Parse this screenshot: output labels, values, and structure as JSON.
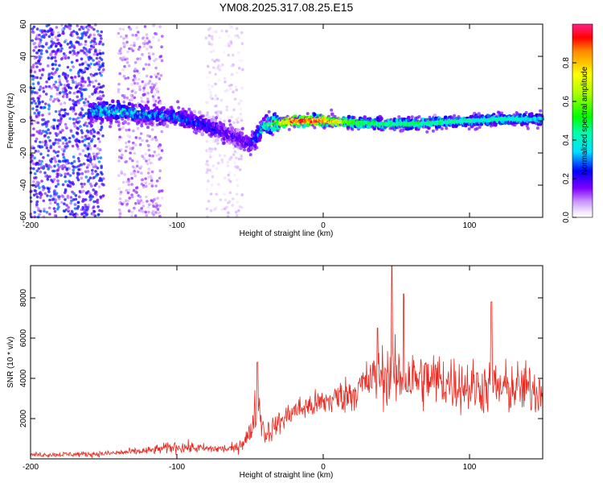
{
  "title": "YM08.2025.317.08.25.E15",
  "colors": {
    "snr_line": "#e8281e",
    "axis": "#000000",
    "background": "#ffffff"
  },
  "chart_data": [
    {
      "type": "heatmap",
      "name": "spectrogram",
      "xlabel": "Height of straight line (km)",
      "ylabel": "Frequency (Hz)",
      "xlim": [
        -200,
        150
      ],
      "ylim": [
        -60,
        60
      ],
      "xticks": [
        -200,
        -100,
        0,
        100
      ],
      "yticks": [
        -60,
        -40,
        -20,
        0,
        20,
        40,
        60
      ],
      "colorbar": {
        "label": "Normalized spectral amplitude",
        "range": [
          0,
          1
        ],
        "ticks": [
          0.0,
          0.2,
          0.4,
          0.6,
          0.8
        ],
        "colormap": "hsv-rainbow (white-violet-blue-cyan-green-yellow-red)"
      },
      "ridge": {
        "description": "main spectral energy band",
        "x": [
          -160,
          -140,
          -120,
          -100,
          -80,
          -60,
          -50,
          -40,
          -20,
          0,
          20,
          40,
          60,
          80,
          100,
          120,
          150
        ],
        "frequency": [
          6,
          6,
          4,
          2,
          -3,
          -10,
          -15,
          -3,
          0,
          0,
          -1,
          -2,
          -2,
          -1,
          0,
          1,
          1
        ],
        "amplitude": [
          0.35,
          0.4,
          0.35,
          0.3,
          0.25,
          0.2,
          0.2,
          0.45,
          0.95,
          0.95,
          0.6,
          0.5,
          0.5,
          0.5,
          0.45,
          0.45,
          0.4
        ]
      },
      "noise_regions": [
        {
          "x_range": [
            -200,
            -150
          ],
          "amplitude": 0.25
        },
        {
          "x_range": [
            -140,
            -110
          ],
          "amplitude": 0.12
        },
        {
          "x_range": [
            -80,
            -55
          ],
          "amplitude": 0.06
        }
      ]
    },
    {
      "type": "line",
      "name": "snr",
      "xlabel": "Height of straight line (km)",
      "ylabel": "SNR (10 * v/v)",
      "xlim": [
        -200,
        150
      ],
      "ylim": [
        0,
        9600
      ],
      "xticks": [
        -200,
        -100,
        0,
        100
      ],
      "yticks": [
        2000,
        4000,
        6000,
        8000
      ],
      "envelope": {
        "x": [
          -200,
          -150,
          -120,
          -100,
          -80,
          -60,
          -50,
          -45,
          -40,
          -30,
          -20,
          0,
          20,
          30,
          40,
          50,
          60,
          80,
          100,
          120,
          140,
          150
        ],
        "center": [
          200,
          250,
          400,
          600,
          500,
          500,
          1200,
          3000,
          1200,
          1800,
          2400,
          2800,
          3300,
          3800,
          4200,
          4000,
          4000,
          3900,
          3600,
          3500,
          3500,
          3400
        ],
        "spread": [
          150,
          180,
          250,
          400,
          300,
          300,
          800,
          1500,
          800,
          700,
          800,
          900,
          1200,
          1400,
          1800,
          2000,
          1900,
          1800,
          1700,
          1700,
          1600,
          1600
        ]
      },
      "peaks": [
        {
          "x": 47,
          "y": 9600
        },
        {
          "x": 37,
          "y": 6500
        },
        {
          "x": 55,
          "y": 8200
        },
        {
          "x": 115,
          "y": 7800
        },
        {
          "x": -45,
          "y": 4800
        }
      ]
    }
  ]
}
